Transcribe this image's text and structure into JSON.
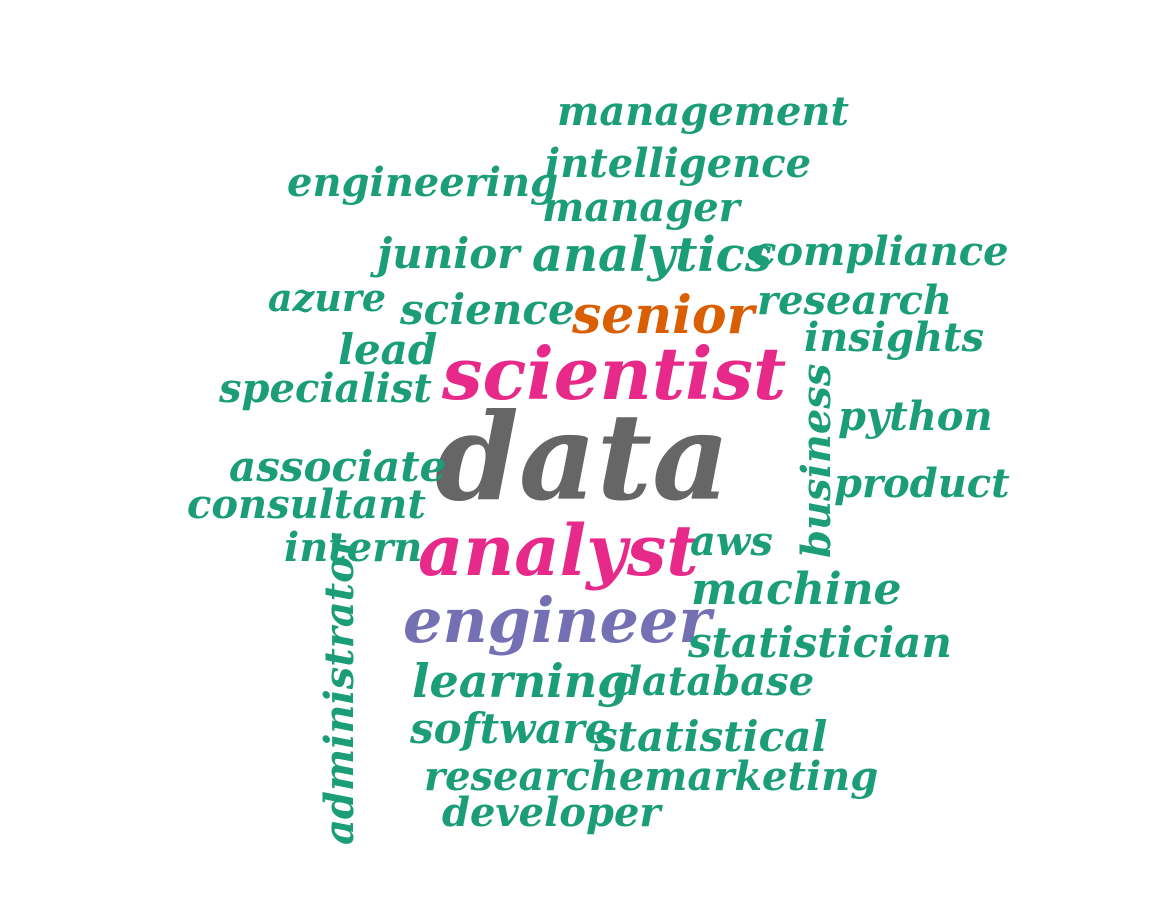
{
  "colors": {
    "green": "#1b9e77",
    "gray": "#666666",
    "pink": "#e7298a",
    "purple": "#7570b3",
    "orange": "#d95f02"
  },
  "words": {
    "data": {
      "text": "data",
      "color": "#666666"
    },
    "scientist": {
      "text": "scientist",
      "color": "#e7298a"
    },
    "analyst": {
      "text": "analyst",
      "color": "#e7298a"
    },
    "engineer": {
      "text": "engineer",
      "color": "#7570b3"
    },
    "senior": {
      "text": "senior",
      "color": "#d95f02"
    },
    "management": {
      "text": "management",
      "color": "#1b9e77"
    },
    "intelligence": {
      "text": "intelligence",
      "color": "#1b9e77"
    },
    "engineering": {
      "text": "engineering",
      "color": "#1b9e77"
    },
    "manager": {
      "text": "manager",
      "color": "#1b9e77"
    },
    "junior": {
      "text": "junior",
      "color": "#1b9e77"
    },
    "analytics": {
      "text": "analytics",
      "color": "#1b9e77"
    },
    "compliance": {
      "text": "compliance",
      "color": "#1b9e77"
    },
    "azure": {
      "text": "azure",
      "color": "#1b9e77"
    },
    "science": {
      "text": "science",
      "color": "#1b9e77"
    },
    "research": {
      "text": "research",
      "color": "#1b9e77"
    },
    "lead": {
      "text": "lead",
      "color": "#1b9e77"
    },
    "insights": {
      "text": "insights",
      "color": "#1b9e77"
    },
    "specialist": {
      "text": "specialist",
      "color": "#1b9e77"
    },
    "business": {
      "text": "business",
      "color": "#1b9e77"
    },
    "python": {
      "text": "python",
      "color": "#1b9e77"
    },
    "associate": {
      "text": "associate",
      "color": "#1b9e77"
    },
    "product": {
      "text": "product",
      "color": "#1b9e77"
    },
    "consultant": {
      "text": "consultant",
      "color": "#1b9e77"
    },
    "intern": {
      "text": "intern",
      "color": "#1b9e77"
    },
    "aws": {
      "text": "aws",
      "color": "#1b9e77"
    },
    "machine": {
      "text": "machine",
      "color": "#1b9e77"
    },
    "administrator": {
      "text": "administrator",
      "color": "#1b9e77"
    },
    "statistician": {
      "text": "statistician",
      "color": "#1b9e77"
    },
    "learning": {
      "text": "learning",
      "color": "#1b9e77"
    },
    "database": {
      "text": "database",
      "color": "#1b9e77"
    },
    "software": {
      "text": "software",
      "color": "#1b9e77"
    },
    "statistical": {
      "text": "statistical",
      "color": "#1b9e77"
    },
    "researcher": {
      "text": "researcher",
      "color": "#1b9e77"
    },
    "marketing": {
      "text": "marketing",
      "color": "#1b9e77"
    },
    "developer": {
      "text": "developer",
      "color": "#1b9e77"
    }
  }
}
